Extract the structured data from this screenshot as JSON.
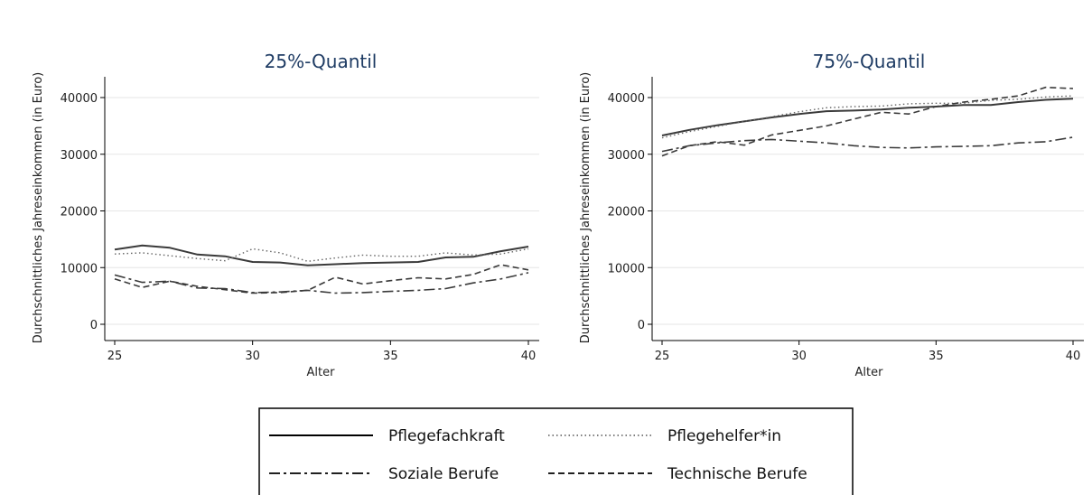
{
  "chart_data": [
    {
      "type": "line",
      "title": "25%-Quantil",
      "xlabel": "Alter",
      "ylabel": "Durchschnittliches Jahreseinkommen (in Euro)",
      "xlim": [
        25,
        40
      ],
      "ylim": [
        0,
        40000
      ],
      "xticks": [
        25,
        30,
        35,
        40
      ],
      "yticks": [
        0,
        10000,
        20000,
        30000,
        40000
      ],
      "grid": true,
      "x": [
        25,
        26,
        27,
        28,
        29,
        30,
        31,
        32,
        33,
        34,
        35,
        36,
        37,
        38,
        39,
        40
      ],
      "series": [
        {
          "name": "Pflegefachkraft",
          "values": [
            13200,
            13900,
            13500,
            12300,
            12000,
            11000,
            10900,
            10400,
            10600,
            10800,
            10900,
            11000,
            11800,
            11900,
            12900,
            13700
          ]
        },
        {
          "name": "Pflegehelfer*in",
          "values": [
            12400,
            12600,
            12100,
            11600,
            11200,
            13300,
            12600,
            11100,
            11700,
            12200,
            12000,
            12000,
            12600,
            12200,
            12400,
            13300
          ]
        },
        {
          "name": "Soziale Berufe",
          "values": [
            8700,
            7400,
            7600,
            6400,
            6300,
            5600,
            5700,
            6000,
            5500,
            5600,
            5800,
            6000,
            6300,
            7300,
            8000,
            9100
          ]
        },
        {
          "name": "Technische Berufe",
          "values": [
            8000,
            6500,
            7600,
            6700,
            6100,
            5500,
            5600,
            6000,
            8300,
            7100,
            7700,
            8200,
            8000,
            8800,
            10500,
            9600
          ]
        }
      ]
    },
    {
      "type": "line",
      "title": "75%-Quantil",
      "xlabel": "Alter",
      "ylabel": "Durchschnittliches Jahreseinkommen (in Euro)",
      "xlim": [
        25,
        40
      ],
      "ylim": [
        0,
        40000
      ],
      "xticks": [
        25,
        30,
        35,
        40
      ],
      "yticks": [
        0,
        10000,
        20000,
        30000,
        40000
      ],
      "grid": true,
      "x": [
        25,
        26,
        27,
        28,
        29,
        30,
        31,
        32,
        33,
        34,
        35,
        36,
        37,
        38,
        39,
        40
      ],
      "series": [
        {
          "name": "Pflegefachkraft",
          "values": [
            33300,
            34300,
            35100,
            35800,
            36500,
            37100,
            37600,
            37700,
            37900,
            38200,
            38400,
            38700,
            38700,
            39200,
            39600,
            39800
          ]
        },
        {
          "name": "Pflegehelfer*in",
          "values": [
            32900,
            34000,
            34900,
            35800,
            36600,
            37500,
            38200,
            38400,
            38500,
            38900,
            39000,
            39000,
            39500,
            39700,
            40100,
            40300
          ]
        },
        {
          "name": "Soziale Berufe",
          "values": [
            30500,
            31500,
            32000,
            32400,
            32600,
            32300,
            32000,
            31500,
            31200,
            31100,
            31300,
            31400,
            31500,
            32000,
            32200,
            33000
          ]
        },
        {
          "name": "Technische Berufe",
          "values": [
            29700,
            31500,
            32200,
            31600,
            33400,
            34200,
            35000,
            36200,
            37400,
            37100,
            38400,
            39200,
            39700,
            40300,
            41800,
            41600
          ]
        }
      ]
    }
  ],
  "legend": {
    "items": [
      {
        "label": "Pflegefachkraft"
      },
      {
        "label": "Pflegehelfer*in"
      },
      {
        "label": "Soziale Berufe"
      },
      {
        "label": "Technische Berufe"
      }
    ]
  }
}
